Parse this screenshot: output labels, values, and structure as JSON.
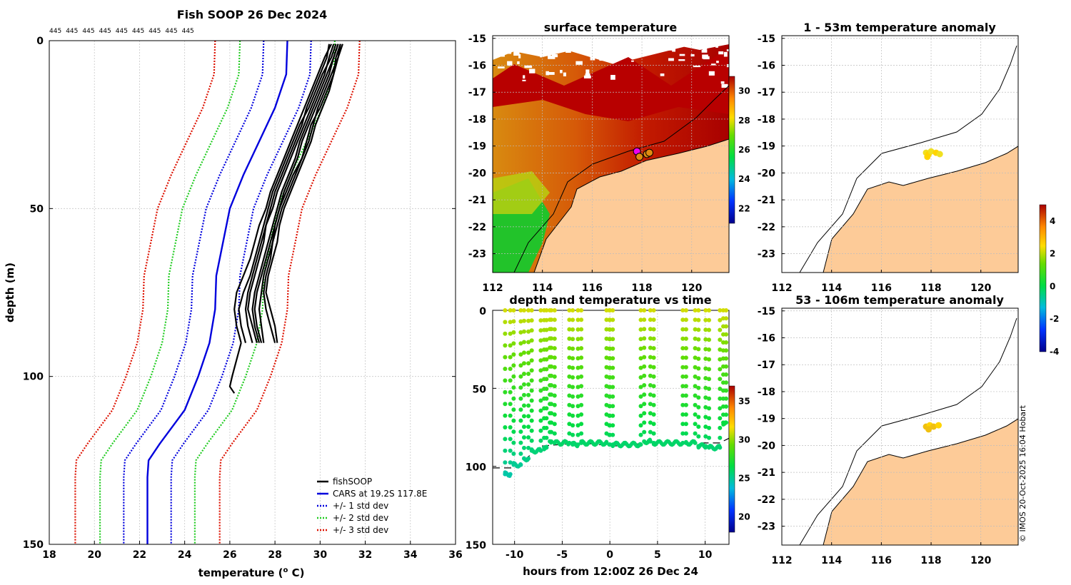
{
  "figure": {
    "credit": "© IMOS 20-Oct-2025 16:04 Hobart"
  },
  "colors": {
    "land": "#fdcb98",
    "fishsoop": "#000000",
    "cars": "#0000dd",
    "std1": "#0000dd",
    "std2": "#22cc22",
    "std3": "#dd1100",
    "marker": "#ee00ee"
  },
  "chart_data": [
    {
      "id": "profile",
      "type": "line",
      "title": "Fish SOOP 26 Dec 2024",
      "xlabel": "temperature (",
      "xlabel_sup": "o",
      "xlabel_end": " C)",
      "ylabel": "depth (m)",
      "xlim": [
        18,
        36
      ],
      "ylim": [
        0,
        150
      ],
      "y_reversed": true,
      "xticks": [
        18,
        20,
        22,
        24,
        26,
        28,
        30,
        32,
        34,
        36
      ],
      "yticks": [
        0,
        50,
        100,
        150
      ],
      "id_labels": [
        "445",
        "445",
        "445",
        "445",
        "445",
        "445",
        "445",
        "445",
        "445"
      ],
      "legend": [
        "fishSOOP",
        "CARS at 19.2S 117.8E",
        "+/- 1 std dev",
        "+/- 2 std dev",
        "+/- 3 std dev"
      ],
      "depth": [
        0,
        10,
        20,
        30,
        40,
        50,
        60,
        70,
        80,
        90,
        100,
        110,
        120,
        125,
        130,
        140,
        150
      ],
      "cars": [
        28.55,
        28.5,
        28.0,
        27.3,
        26.6,
        26.0,
        25.7,
        25.4,
        25.35,
        25.1,
        24.6,
        24.0,
        22.9,
        22.4,
        22.35,
        22.35,
        22.35
      ],
      "std_offsets": [
        1.05,
        2.1,
        3.2
      ],
      "profile_depths": [
        1,
        5,
        10,
        15,
        20,
        25,
        30,
        35,
        40,
        45,
        50,
        55,
        60,
        65,
        70,
        75,
        80,
        85,
        90
      ],
      "profiles": [
        [
          30.9,
          30.7,
          30.6,
          30.3,
          30.0,
          29.6,
          29.4,
          29.2,
          28.8,
          28.5,
          28.2,
          28.0,
          27.9,
          27.7,
          27.5,
          27.4,
          27.3,
          27.4,
          27.5
        ],
        [
          30.8,
          30.6,
          30.3,
          30.0,
          29.7,
          29.4,
          29.1,
          28.9,
          28.6,
          28.3,
          28.1,
          27.9,
          27.7,
          27.5,
          27.3,
          27.1,
          27.0,
          27.1,
          27.3
        ],
        [
          31.0,
          30.8,
          30.5,
          30.2,
          29.9,
          29.7,
          29.5,
          29.2,
          28.9,
          28.6,
          28.3,
          28.1,
          27.9,
          27.8,
          27.6,
          27.5,
          27.6,
          27.8,
          28.0
        ],
        [
          30.6,
          30.4,
          30.2,
          29.9,
          29.6,
          29.3,
          29.0,
          28.7,
          28.4,
          28.1,
          27.9,
          27.6,
          27.4,
          27.2,
          27.0,
          26.8,
          26.7,
          26.8,
          27.0
        ],
        [
          30.7,
          30.5,
          30.1,
          29.8,
          29.5,
          29.1,
          28.8,
          28.5,
          28.2,
          27.9,
          27.7,
          27.5,
          27.3,
          27.1,
          26.9,
          26.6,
          26.4,
          26.5,
          26.7
        ],
        [
          30.9,
          30.8,
          30.6,
          30.4,
          30.1,
          29.8,
          29.6,
          29.3,
          29.0,
          28.7,
          28.4,
          28.2,
          28.1,
          27.9,
          27.7,
          27.6,
          27.8,
          28.0,
          28.1
        ],
        [
          30.5,
          30.2,
          29.9,
          29.6,
          29.3,
          29.0,
          28.7,
          28.4,
          28.1,
          27.8,
          27.6,
          27.3,
          27.1,
          26.9,
          26.6,
          26.3,
          26.2,
          26.3,
          26.5
        ],
        [
          30.8,
          30.6,
          30.4,
          30.1,
          29.8,
          29.5,
          29.2,
          29.0,
          28.7,
          28.4,
          28.2,
          28.0,
          27.8,
          27.6,
          27.4,
          27.2,
          27.1,
          27.2,
          27.4
        ],
        [
          30.4,
          30.3,
          30.0,
          29.7,
          29.4,
          29.2,
          28.9,
          28.6,
          28.3,
          28.0,
          27.8,
          27.6,
          27.5,
          27.3,
          27.1,
          26.9,
          26.8,
          27.0,
          27.2
        ]
      ],
      "deep_profile_depths": [
        90,
        95,
        100,
        103,
        105
      ],
      "deep_profile": [
        26.5,
        26.3,
        26.1,
        26.0,
        26.2
      ]
    },
    {
      "id": "sst",
      "type": "heatmap",
      "title": "surface temperature",
      "xlim": [
        112,
        121.5
      ],
      "ylim": [
        -23.7,
        -14.9
      ],
      "xticks": [
        112,
        114,
        116,
        118,
        120
      ],
      "yticks": [
        -15,
        -16,
        -17,
        -18,
        -19,
        -20,
        -21,
        -22,
        -23
      ],
      "colorbar": {
        "range": [
          21,
          31
        ],
        "ticks": [
          22,
          24,
          26,
          28,
          30
        ]
      },
      "markers": [
        [
          117.8,
          -19.2
        ],
        [
          117.9,
          -19.4
        ],
        [
          118.2,
          -19.3
        ],
        [
          118.3,
          -19.25
        ]
      ]
    },
    {
      "id": "anom1",
      "type": "scatter",
      "title": "1 - 53m temperature anomaly",
      "xlim": [
        112,
        121.5
      ],
      "ylim": [
        -23.7,
        -14.9
      ],
      "xticks": [
        112,
        114,
        116,
        118,
        120
      ],
      "yticks": [
        -15,
        -16,
        -17,
        -18,
        -19,
        -20,
        -21,
        -22,
        -23
      ],
      "points": [
        [
          117.8,
          -19.25
        ],
        [
          117.9,
          -19.3
        ],
        [
          118.0,
          -19.2
        ],
        [
          118.2,
          -19.25
        ],
        [
          118.35,
          -19.3
        ],
        [
          117.85,
          -19.4
        ]
      ]
    },
    {
      "id": "anom2",
      "type": "scatter",
      "title": "53 - 106m temperature anomaly",
      "xlim": [
        112,
        121.5
      ],
      "ylim": [
        -23.7,
        -14.9
      ],
      "xticks": [
        112,
        114,
        116,
        118,
        120
      ],
      "yticks": [
        -15,
        -16,
        -17,
        -18,
        -19,
        -20,
        -21,
        -22,
        -23
      ],
      "points": [
        [
          117.8,
          -19.3
        ],
        [
          117.95,
          -19.25
        ],
        [
          118.1,
          -19.3
        ],
        [
          118.3,
          -19.25
        ],
        [
          117.9,
          -19.4
        ]
      ]
    },
    {
      "id": "anom_colorbar",
      "type": "heatmap",
      "range": [
        -4,
        5
      ],
      "ticks": [
        4,
        2,
        0,
        -2,
        -4
      ]
    },
    {
      "id": "timeseries",
      "type": "scatter",
      "title": "depth and temperature vs time",
      "xlabel": "hours from 12:00Z 26 Dec 24",
      "xlim": [
        -12.3,
        12.5
      ],
      "ylim": [
        0,
        150
      ],
      "y_reversed": true,
      "xticks": [
        -10,
        -5,
        0,
        5,
        10
      ],
      "yticks": [
        0,
        50,
        100,
        150
      ],
      "colorbar": {
        "range": [
          18,
          37
        ],
        "ticks": [
          20,
          25,
          30,
          35
        ]
      },
      "dive_starts": [
        -11.0,
        -10.1,
        -9.0,
        -8.2,
        -6.9,
        -6.3,
        -5.8,
        -3.9,
        -3.0,
        0.0,
        0.3,
        3.6,
        4.6,
        8.0,
        9.3,
        10.4,
        11.9
      ],
      "bottom_depth": [
        105,
        99,
        95,
        90,
        88,
        84,
        85,
        86,
        85,
        86,
        86,
        84,
        85,
        85,
        87,
        88,
        72
      ],
      "seafloor": [
        [
          -12.3,
          101
        ],
        [
          -10.0,
          101
        ],
        [
          -7.2,
          87
        ],
        [
          -3.0,
          85
        ],
        [
          0.5,
          87
        ],
        [
          4.0,
          85
        ],
        [
          8.0,
          85
        ],
        [
          11.5,
          85
        ],
        [
          12.5,
          82
        ]
      ]
    }
  ]
}
